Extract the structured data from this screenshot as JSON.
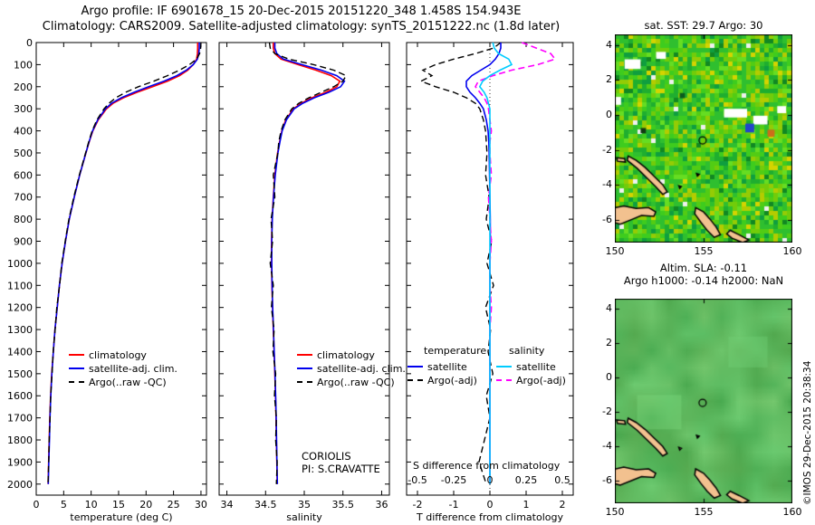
{
  "title_line1": "Argo profile: IF 6901678_15 20-Dec-2015 20151220_348 1.458S 154.943E",
  "title_line2": "Climatology: CARS2009. Satellite-adjusted climatology: synTS_20151222.nc (1.8d later)",
  "copyright": "©IMOS 29-Dec-2015 20:38:34",
  "maps": {
    "land_color": "#f2c18f",
    "land": [
      [
        [
          149.8,
          -5.35
        ],
        [
          150.5,
          -5.2
        ],
        [
          151.2,
          -5.35
        ],
        [
          151.9,
          -5.3
        ],
        [
          152.3,
          -5.55
        ],
        [
          152.2,
          -5.8
        ],
        [
          151.5,
          -5.75
        ],
        [
          150.9,
          -6.0
        ],
        [
          150.3,
          -6.25
        ],
        [
          149.8,
          -6.1
        ]
      ],
      [
        [
          150.75,
          -2.35
        ],
        [
          151.2,
          -2.6
        ],
        [
          151.7,
          -3.0
        ],
        [
          152.2,
          -3.5
        ],
        [
          152.7,
          -4.0
        ],
        [
          152.95,
          -4.4
        ],
        [
          152.7,
          -4.55
        ],
        [
          152.3,
          -4.1
        ],
        [
          151.8,
          -3.6
        ],
        [
          151.25,
          -3.05
        ],
        [
          150.7,
          -2.6
        ]
      ],
      [
        [
          150.1,
          -2.45
        ],
        [
          150.55,
          -2.5
        ],
        [
          150.6,
          -2.7
        ],
        [
          150.15,
          -2.65
        ]
      ],
      [
        [
          154.55,
          -5.3
        ],
        [
          155.0,
          -5.55
        ],
        [
          155.35,
          -5.95
        ],
        [
          155.7,
          -6.4
        ],
        [
          155.95,
          -6.85
        ],
        [
          155.6,
          -7.0
        ],
        [
          155.2,
          -6.6
        ],
        [
          154.85,
          -6.15
        ],
        [
          154.5,
          -5.65
        ]
      ],
      [
        [
          156.5,
          -6.6
        ],
        [
          157.0,
          -6.85
        ],
        [
          157.55,
          -7.15
        ],
        [
          157.2,
          -7.3
        ],
        [
          156.6,
          -7.05
        ],
        [
          156.3,
          -6.8
        ]
      ],
      [
        [
          153.6,
          -4.05
        ],
        [
          153.75,
          -4.1
        ],
        [
          153.65,
          -4.2
        ]
      ],
      [
        [
          154.6,
          -3.35
        ],
        [
          154.75,
          -3.4
        ],
        [
          154.65,
          -3.5
        ]
      ]
    ],
    "sst": {
      "title": "sat. SST: 29.7 Argo: 30",
      "lon_range": [
        150,
        160
      ],
      "lat_range": [
        4.6,
        -7.3
      ],
      "xticks": [
        150,
        155,
        160
      ],
      "xtick_labels": [
        "150",
        "155",
        "160"
      ],
      "yticks": [
        4,
        2,
        0,
        -2,
        -4,
        -6
      ],
      "ytick_labels": [
        "4",
        "2",
        "0",
        "-2",
        "-4",
        "-6"
      ],
      "marker": {
        "lon": 154.943,
        "lat": -1.458
      },
      "seed": 7,
      "palette": [
        {
          "c": "#2fbf2f",
          "w": 18
        },
        {
          "c": "#3ecc1e",
          "w": 16
        },
        {
          "c": "#52cc14",
          "w": 12
        },
        {
          "c": "#72cc0a",
          "w": 10
        },
        {
          "c": "#94cc05",
          "w": 8
        },
        {
          "c": "#b4cc00",
          "w": 5
        },
        {
          "c": "#d4d400",
          "w": 3
        },
        {
          "c": "#1fae2f",
          "w": 10
        },
        {
          "c": "#0f9e3f",
          "w": 6
        },
        {
          "c": "#66dd22",
          "w": 8
        },
        {
          "c": "#118822",
          "w": 3
        },
        {
          "c": "#f0f0f0",
          "w": 1
        }
      ],
      "features": [
        {
          "lon": 151.0,
          "lat": 2.9,
          "w": 0.9,
          "h": 0.55,
          "color": "#ffffff"
        },
        {
          "lon": 152.6,
          "lat": 3.4,
          "w": 0.55,
          "h": 0.4,
          "color": "#ffffff"
        },
        {
          "lon": 150.1,
          "lat": 0.8,
          "w": 0.5,
          "h": 0.45,
          "color": "#ffffff"
        },
        {
          "lon": 156.8,
          "lat": 0.1,
          "w": 1.3,
          "h": 0.5,
          "color": "#ffffff"
        },
        {
          "lon": 158.2,
          "lat": -0.3,
          "w": 0.8,
          "h": 0.5,
          "color": "#ffffff"
        },
        {
          "lon": 157.6,
          "lat": -0.75,
          "w": 0.5,
          "h": 0.5,
          "color": "#2244cc"
        },
        {
          "lon": 158.8,
          "lat": -1.05,
          "w": 0.4,
          "h": 0.4,
          "color": "#cc6d1a"
        },
        {
          "lon": 159.4,
          "lat": 0.3,
          "w": 0.5,
          "h": 0.4,
          "color": "#ffffff"
        },
        {
          "lon": 153.8,
          "lat": 1.1,
          "w": 0.3,
          "h": 0.3,
          "color": "#0a5a1e"
        },
        {
          "lon": 151.6,
          "lat": -0.9,
          "w": 0.3,
          "h": 0.3,
          "color": "#123a12"
        }
      ]
    },
    "sla": {
      "title_line1": "Altim. SLA: -0.11",
      "title_line2": "Argo h1000: -0.14 h2000: NaN",
      "lon_range": [
        150,
        160
      ],
      "lat_range": [
        4.6,
        -7.3
      ],
      "xticks": [
        150,
        155,
        160
      ],
      "xtick_labels": [
        "150",
        "155",
        "160"
      ],
      "yticks": [
        4,
        2,
        0,
        -2,
        -4,
        -6
      ],
      "ytick_labels": [
        "4",
        "2",
        "0",
        "-2",
        "-4",
        "-6"
      ],
      "marker": {
        "lon": 154.943,
        "lat": -1.458
      },
      "seed": 11,
      "features": [
        {
          "lon": 152.5,
          "lat": -2.0,
          "w": 2.5,
          "h": 2.0,
          "color": "rgba(130,220,130,0.35)"
        },
        {
          "lon": 157.5,
          "lat": 1.5,
          "w": 2.2,
          "h": 1.8,
          "color": "rgba(120,215,125,0.30)"
        }
      ]
    }
  },
  "chart_data": [
    {
      "type": "line",
      "xlabel": "temperature (deg C)",
      "xlim": [
        0,
        31
      ],
      "xticks": [
        0,
        5,
        10,
        15,
        20,
        25,
        30
      ],
      "ylim": [
        0,
        2050
      ],
      "ytick_step": 100,
      "ytick_max": 2000,
      "depths": [
        0,
        25,
        50,
        75,
        100,
        125,
        150,
        175,
        200,
        225,
        250,
        275,
        300,
        350,
        400,
        450,
        500,
        600,
        700,
        800,
        900,
        1000,
        1100,
        1200,
        1300,
        1400,
        1500,
        1600,
        1700,
        1800,
        1900,
        2000
      ],
      "series": [
        {
          "name": "climatology",
          "color": "#ff0000",
          "dash": false,
          "width": 1.6,
          "values": [
            29.4,
            29.4,
            29.35,
            29.2,
            28.6,
            27.6,
            26.1,
            23.9,
            21.2,
            18.4,
            15.9,
            14.0,
            12.8,
            11.3,
            10.3,
            9.65,
            9.05,
            7.92,
            6.92,
            6.02,
            5.32,
            4.72,
            4.22,
            3.82,
            3.42,
            3.12,
            2.82,
            2.62,
            2.47,
            2.36,
            2.26,
            2.16
          ]
        },
        {
          "name": "satellite-adj. clim.",
          "color": "#0000ee",
          "dash": false,
          "width": 1.6,
          "values": [
            29.7,
            29.7,
            29.6,
            29.35,
            28.6,
            27.35,
            25.6,
            23.25,
            20.5,
            17.85,
            15.5,
            13.72,
            12.62,
            11.2,
            10.25,
            9.62,
            9.03,
            7.92,
            6.92,
            6.02,
            5.32,
            4.72,
            4.22,
            3.82,
            3.42,
            3.12,
            2.85,
            2.65,
            2.5,
            2.4,
            2.3,
            2.2
          ]
        },
        {
          "name": "Argo(..raw -QC)",
          "color": "#000000",
          "dash": true,
          "width": 1.4,
          "values": [
            30.0,
            29.95,
            29.75,
            29.2,
            27.9,
            26.1,
            23.9,
            21.4,
            18.6,
            16.3,
            14.5,
            13.25,
            12.35,
            11.05,
            10.18,
            9.55,
            8.98,
            7.85,
            6.85,
            5.95,
            5.28,
            4.65,
            4.25,
            3.75,
            3.44,
            3.08,
            2.88,
            2.62,
            2.52,
            2.35,
            2.28,
            2.15
          ]
        }
      ],
      "legend": [
        {
          "label": "climatology",
          "color": "#ff0000",
          "dash": false
        },
        {
          "label": "satellite-adj. clim.",
          "color": "#0000ee",
          "dash": false
        },
        {
          "label": "Argo(..raw -QC)",
          "color": "#000000",
          "dash": true
        }
      ]
    },
    {
      "type": "line",
      "xlabel": "salinity",
      "xlim": [
        33.9,
        36.1
      ],
      "xticks": [
        34,
        34.5,
        35,
        35.5,
        36
      ],
      "xtick_labels": [
        "34",
        "34.5",
        "35",
        "35.5",
        "36"
      ],
      "ylim": [
        0,
        2050
      ],
      "ytick_step": 100,
      "ytick_max": 2000,
      "annotation": {
        "line1": "CORIOLIS",
        "line2": "PI: S.CRAVATTE"
      },
      "depths": [
        0,
        25,
        50,
        75,
        100,
        125,
        150,
        175,
        200,
        225,
        250,
        275,
        300,
        350,
        400,
        450,
        500,
        600,
        700,
        800,
        900,
        1000,
        1100,
        1200,
        1300,
        1400,
        1500,
        1600,
        1700,
        1800,
        1900,
        2000
      ],
      "series": [
        {
          "name": "climatology",
          "color": "#ff0000",
          "dash": false,
          "width": 1.6,
          "values": [
            34.6,
            34.6,
            34.62,
            34.7,
            34.92,
            35.15,
            35.35,
            35.46,
            35.42,
            35.28,
            35.1,
            34.96,
            34.86,
            34.76,
            34.71,
            34.68,
            34.655,
            34.62,
            34.6,
            34.585,
            34.578,
            34.578,
            34.582,
            34.59,
            34.6,
            34.61,
            34.62,
            34.628,
            34.635,
            34.64,
            34.645,
            34.65
          ]
        },
        {
          "name": "satellite-adj. clim.",
          "color": "#0000ee",
          "dash": false,
          "width": 1.6,
          "values": [
            34.62,
            34.62,
            34.645,
            34.73,
            34.97,
            35.22,
            35.42,
            35.52,
            35.47,
            35.32,
            35.13,
            34.98,
            34.87,
            34.77,
            34.715,
            34.685,
            34.66,
            34.625,
            34.602,
            34.587,
            34.58,
            34.58,
            34.584,
            34.592,
            34.602,
            34.612,
            34.622,
            34.63,
            34.637,
            34.642,
            34.647,
            34.652
          ]
        },
        {
          "name": "Argo(..raw -QC)",
          "color": "#000000",
          "dash": true,
          "width": 1.4,
          "values": [
            34.55,
            34.56,
            34.62,
            34.8,
            35.12,
            35.38,
            35.54,
            35.5,
            35.38,
            35.22,
            35.06,
            34.93,
            34.84,
            34.75,
            34.7,
            34.67,
            34.66,
            34.6,
            34.62,
            34.57,
            34.59,
            34.56,
            34.6,
            34.575,
            34.61,
            34.595,
            34.63,
            34.615,
            34.64,
            34.63,
            34.65,
            34.64
          ]
        }
      ],
      "legend": [
        {
          "label": "climatology",
          "color": "#ff0000",
          "dash": false
        },
        {
          "label": "satellite-adj. clim.",
          "color": "#0000ee",
          "dash": false
        },
        {
          "label": "Argo(..raw -QC)",
          "color": "#000000",
          "dash": true
        }
      ]
    },
    {
      "type": "line",
      "xlabel": "T difference from climatology",
      "xlim": [
        -2.3,
        2.3
      ],
      "xticks": [
        -2,
        -1,
        0,
        1,
        2
      ],
      "xtick_labels": [
        "-2",
        "-1",
        "0",
        "1",
        "2"
      ],
      "ylim": [
        0,
        2050
      ],
      "ytick_step": 100,
      "ytick_max": 2000,
      "zeroline": true,
      "s_scale_label": "S difference from climatology",
      "s_ticks": [
        "-0.5",
        "-0.25",
        "0",
        "0.25",
        "0.5"
      ],
      "s_tick_positions": [
        -2,
        -1,
        0,
        1,
        2
      ],
      "legend_headers": [
        "temperature",
        "salinity"
      ],
      "legend_rows": [
        {
          "t": "satellite",
          "t_color": "#0000ee",
          "t_dash": false,
          "s": "satellite",
          "s_color": "#00ccff",
          "s_dash": false
        },
        {
          "t": "Argo(-adj)",
          "t_color": "#000000",
          "t_dash": true,
          "s": "Argo(-adj)",
          "s_color": "#ff00ff",
          "s_dash": true
        }
      ],
      "depths": [
        0,
        25,
        50,
        75,
        100,
        125,
        150,
        175,
        200,
        225,
        250,
        275,
        300,
        350,
        400,
        450,
        500,
        600,
        700,
        800,
        900,
        1000,
        1100,
        1200,
        1300,
        1400,
        1500,
        1600,
        1700,
        1800,
        1900,
        2000
      ],
      "series": [
        {
          "name": "T Argo(-adj)",
          "color": "#000000",
          "dash": true,
          "width": 1.4,
          "scale": 1,
          "values": [
            0.3,
            0.1,
            -0.4,
            -1.0,
            -1.5,
            -1.85,
            -1.6,
            -1.9,
            -1.5,
            -1.0,
            -0.65,
            -0.4,
            -0.28,
            -0.18,
            -0.12,
            -0.1,
            -0.08,
            -0.12,
            -0.02,
            -0.1,
            0.05,
            -0.08,
            0.1,
            -0.12,
            0.02,
            -0.05,
            0.08,
            -0.1,
            0.0,
            -0.15,
            -0.3,
            -0.1
          ]
        },
        {
          "name": "T satellite",
          "color": "#0000ee",
          "dash": false,
          "width": 1.6,
          "scale": 1,
          "values": [
            0.3,
            0.3,
            0.25,
            0.15,
            0.0,
            -0.25,
            -0.5,
            -0.65,
            -0.65,
            -0.55,
            -0.4,
            -0.28,
            -0.18,
            -0.1,
            -0.05,
            -0.03,
            -0.02,
            -0.01,
            0.0,
            0.01,
            0.01,
            0.0,
            0.0,
            0.0,
            0.0,
            0.0,
            0.0,
            0.0,
            0.0,
            0.0,
            0.0,
            0.0
          ]
        },
        {
          "name": "S Argo(-adj)",
          "color": "#ff00ff",
          "dash": true,
          "width": 1.6,
          "scale": 4,
          "values": [
            0.22,
            0.32,
            0.42,
            0.45,
            0.33,
            0.15,
            0.02,
            -0.08,
            -0.1,
            -0.07,
            -0.04,
            -0.02,
            -0.01,
            0.0,
            0.01,
            0.0,
            0.0,
            0.01,
            -0.01,
            0.0,
            0.01,
            0.0,
            0.0,
            0.01,
            0.0,
            0.0,
            0.0,
            0.0,
            0.0,
            0.0,
            0.0,
            0.0
          ]
        },
        {
          "name": "S satellite",
          "color": "#00ccff",
          "dash": false,
          "width": 1.6,
          "scale": 4,
          "values": [
            0.02,
            0.03,
            0.06,
            0.13,
            0.15,
            0.07,
            0.0,
            -0.05,
            -0.07,
            -0.04,
            -0.02,
            -0.01,
            0.0,
            0.0,
            0.0,
            0.0,
            0.0,
            0.0,
            0.0,
            0.0,
            0.0,
            0.0,
            0.0,
            0.0,
            0.0,
            0.0,
            0.0,
            0.0,
            0.0,
            0.0,
            0.0,
            0.0
          ]
        }
      ]
    }
  ]
}
